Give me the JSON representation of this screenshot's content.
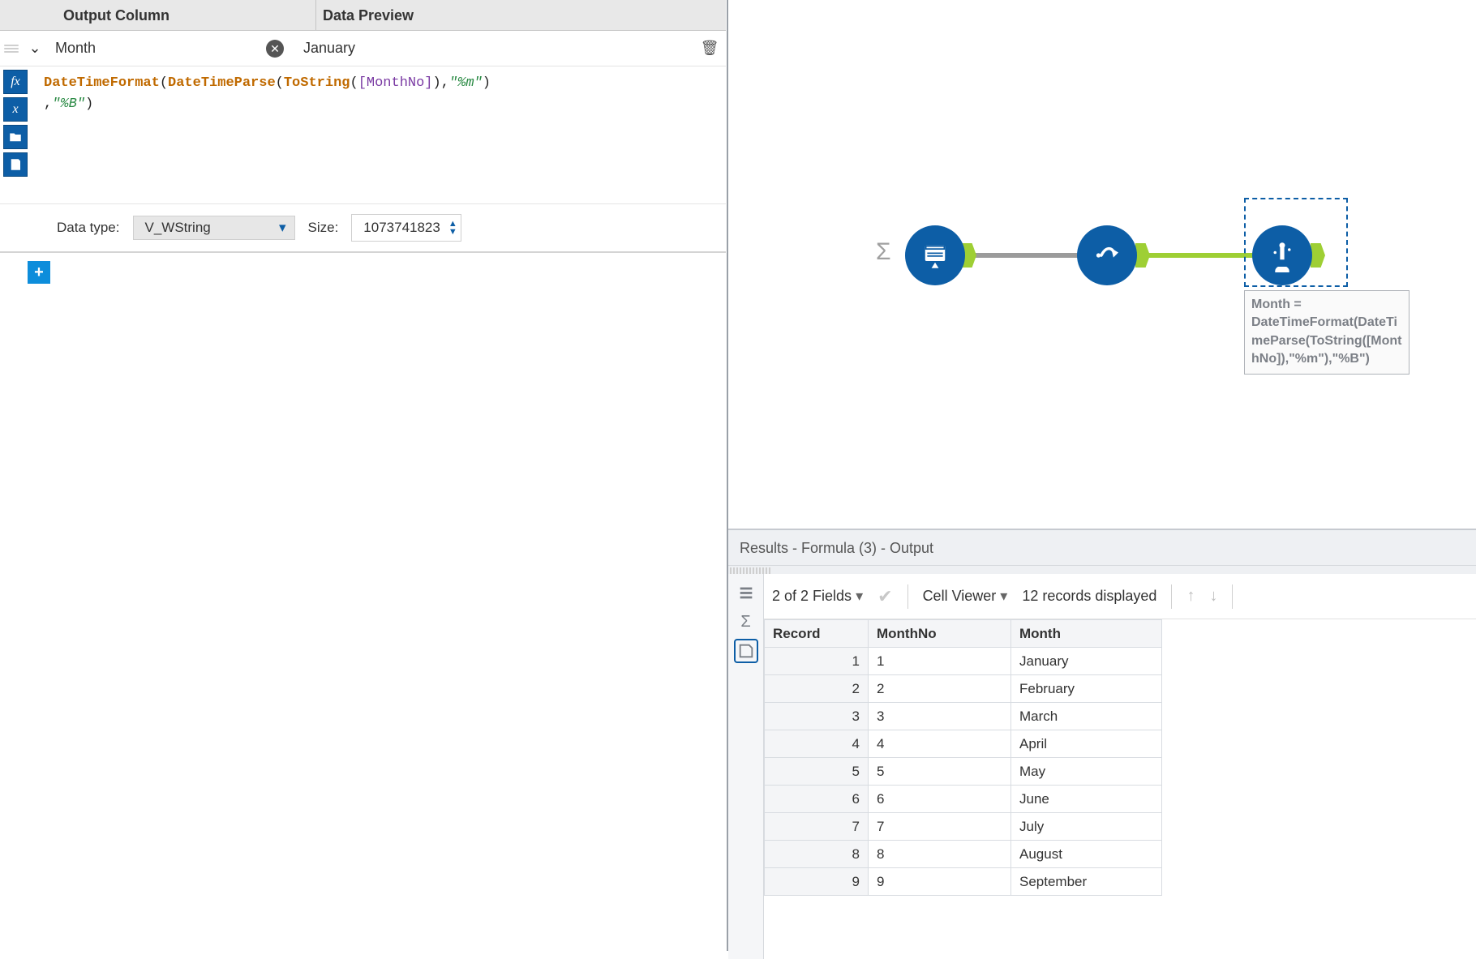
{
  "colors": {
    "primary": "#0d5ea6",
    "accent_green": "#9ecf34",
    "panel_bg": "#eef0f3",
    "border": "#c6cad0"
  },
  "config": {
    "header_output_column": "Output Column",
    "header_data_preview": "Data Preview",
    "output_column_value": "Month",
    "preview_value": "January",
    "formula_tokens": {
      "fn1": "DateTimeFormat",
      "fn2": "DateTimeParse",
      "fn3": "ToString",
      "field": "[MonthNo]",
      "str1": "\"%m\"",
      "str2": "\"%B\""
    },
    "data_type_label": "Data type:",
    "data_type_value": "V_WString",
    "size_label": "Size:",
    "size_value": "1073741823",
    "tool_buttons": {
      "fx": "fx",
      "x": "x",
      "open": "open-icon",
      "save": "save-icon"
    }
  },
  "canvas": {
    "selected_tool_annotation": "Month = DateTimeFormat(DateTimeParse(ToString([MonthNo]),\"%m\"),\"%B\")"
  },
  "results": {
    "title": "Results - Formula (3) - Output",
    "fields_label": "2 of 2 Fields",
    "cell_viewer_label": "Cell Viewer",
    "records_label": "12 records displayed",
    "columns": {
      "record": "Record",
      "c1": "MonthNo",
      "c2": "Month"
    },
    "rows": [
      {
        "n": "1",
        "a": "1",
        "b": "January"
      },
      {
        "n": "2",
        "a": "2",
        "b": "February"
      },
      {
        "n": "3",
        "a": "3",
        "b": "March"
      },
      {
        "n": "4",
        "a": "4",
        "b": "April"
      },
      {
        "n": "5",
        "a": "5",
        "b": "May"
      },
      {
        "n": "6",
        "a": "6",
        "b": "June"
      },
      {
        "n": "7",
        "a": "7",
        "b": "July"
      },
      {
        "n": "8",
        "a": "8",
        "b": "August"
      },
      {
        "n": "9",
        "a": "9",
        "b": "September"
      }
    ]
  }
}
